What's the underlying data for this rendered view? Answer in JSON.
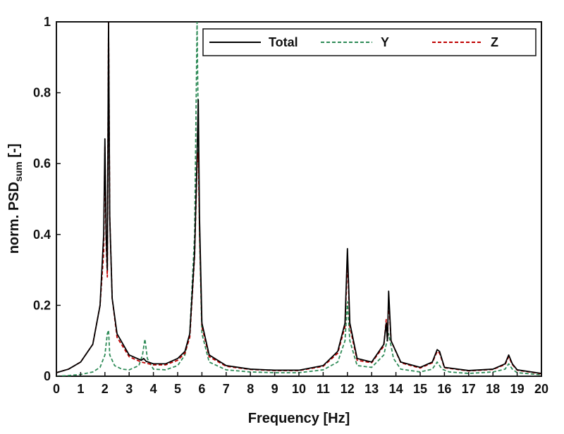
{
  "chart_data": {
    "type": "line",
    "xlabel": "Frequency [Hz]",
    "ylabel_main": "norm. PSD",
    "ylabel_sub": "sum",
    "ylabel_suffix": " [-]",
    "xlim": [
      0,
      20
    ],
    "ylim": [
      0,
      1
    ],
    "xticks": [
      "0",
      "1",
      "2",
      "3",
      "4",
      "5",
      "6",
      "7",
      "8",
      "9",
      "10",
      "11",
      "12",
      "13",
      "14",
      "15",
      "16",
      "17",
      "18",
      "19",
      "20"
    ],
    "yticks": [
      "0",
      "0.2",
      "0.4",
      "0.6",
      "0.8",
      "1"
    ],
    "grid": false,
    "legend_position": "top-right",
    "series": [
      {
        "name": "Total",
        "color": "#000000",
        "dash": "solid",
        "points": [
          [
            0,
            0.01
          ],
          [
            0.5,
            0.02
          ],
          [
            1.0,
            0.04
          ],
          [
            1.5,
            0.09
          ],
          [
            1.8,
            0.2
          ],
          [
            1.95,
            0.4
          ],
          [
            2.0,
            0.67
          ],
          [
            2.05,
            0.4
          ],
          [
            2.1,
            0.3
          ],
          [
            2.15,
            1.0
          ],
          [
            2.2,
            0.45
          ],
          [
            2.3,
            0.22
          ],
          [
            2.5,
            0.12
          ],
          [
            3.0,
            0.06
          ],
          [
            3.5,
            0.045
          ],
          [
            3.6,
            0.05
          ],
          [
            3.7,
            0.042
          ],
          [
            4.0,
            0.035
          ],
          [
            4.5,
            0.035
          ],
          [
            5.0,
            0.05
          ],
          [
            5.3,
            0.07
          ],
          [
            5.5,
            0.12
          ],
          [
            5.7,
            0.35
          ],
          [
            5.8,
            0.62
          ],
          [
            5.85,
            0.78
          ],
          [
            5.9,
            0.45
          ],
          [
            6.0,
            0.15
          ],
          [
            6.3,
            0.06
          ],
          [
            7.0,
            0.03
          ],
          [
            8.0,
            0.02
          ],
          [
            9.0,
            0.017
          ],
          [
            10.0,
            0.017
          ],
          [
            11.0,
            0.03
          ],
          [
            11.6,
            0.07
          ],
          [
            11.9,
            0.15
          ],
          [
            12.0,
            0.36
          ],
          [
            12.1,
            0.15
          ],
          [
            12.4,
            0.05
          ],
          [
            13.0,
            0.04
          ],
          [
            13.5,
            0.09
          ],
          [
            13.6,
            0.15
          ],
          [
            13.65,
            0.1
          ],
          [
            13.7,
            0.24
          ],
          [
            13.8,
            0.1
          ],
          [
            14.2,
            0.04
          ],
          [
            15.0,
            0.025
          ],
          [
            15.5,
            0.04
          ],
          [
            15.7,
            0.075
          ],
          [
            15.8,
            0.07
          ],
          [
            16.0,
            0.025
          ],
          [
            17.0,
            0.016
          ],
          [
            18.0,
            0.02
          ],
          [
            18.5,
            0.035
          ],
          [
            18.65,
            0.06
          ],
          [
            18.8,
            0.035
          ],
          [
            19.0,
            0.018
          ],
          [
            20.0,
            0.008
          ]
        ]
      },
      {
        "name": "Y",
        "color": "#2e8b57",
        "dash": "dashed",
        "points": [
          [
            0,
            0.0
          ],
          [
            0.5,
            0.002
          ],
          [
            1.0,
            0.005
          ],
          [
            1.5,
            0.012
          ],
          [
            1.8,
            0.025
          ],
          [
            2.0,
            0.06
          ],
          [
            2.1,
            0.12
          ],
          [
            2.15,
            0.13
          ],
          [
            2.2,
            0.06
          ],
          [
            2.4,
            0.03
          ],
          [
            2.7,
            0.02
          ],
          [
            3.0,
            0.018
          ],
          [
            3.4,
            0.03
          ],
          [
            3.55,
            0.06
          ],
          [
            3.65,
            0.105
          ],
          [
            3.75,
            0.05
          ],
          [
            4.0,
            0.02
          ],
          [
            4.5,
            0.018
          ],
          [
            5.0,
            0.03
          ],
          [
            5.3,
            0.06
          ],
          [
            5.5,
            0.12
          ],
          [
            5.7,
            0.4
          ],
          [
            5.8,
            1.0
          ],
          [
            5.9,
            0.4
          ],
          [
            6.0,
            0.12
          ],
          [
            6.3,
            0.04
          ],
          [
            7.0,
            0.018
          ],
          [
            8.0,
            0.012
          ],
          [
            9.0,
            0.01
          ],
          [
            10.0,
            0.01
          ],
          [
            11.0,
            0.018
          ],
          [
            11.6,
            0.04
          ],
          [
            11.9,
            0.1
          ],
          [
            12.0,
            0.21
          ],
          [
            12.1,
            0.1
          ],
          [
            12.4,
            0.03
          ],
          [
            13.0,
            0.025
          ],
          [
            13.5,
            0.06
          ],
          [
            13.7,
            0.12
          ],
          [
            13.9,
            0.05
          ],
          [
            14.2,
            0.02
          ],
          [
            15.0,
            0.012
          ],
          [
            15.5,
            0.02
          ],
          [
            15.7,
            0.04
          ],
          [
            15.9,
            0.02
          ],
          [
            16.2,
            0.012
          ],
          [
            17.0,
            0.008
          ],
          [
            18.0,
            0.012
          ],
          [
            18.5,
            0.02
          ],
          [
            18.65,
            0.035
          ],
          [
            18.8,
            0.02
          ],
          [
            19.0,
            0.01
          ],
          [
            20.0,
            0.004
          ]
        ]
      },
      {
        "name": "Z",
        "color": "#c00000",
        "dash": "dashed",
        "points": [
          [
            0,
            0.01
          ],
          [
            0.5,
            0.02
          ],
          [
            1.0,
            0.04
          ],
          [
            1.5,
            0.09
          ],
          [
            1.8,
            0.2
          ],
          [
            1.95,
            0.35
          ],
          [
            2.0,
            0.65
          ],
          [
            2.05,
            0.38
          ],
          [
            2.1,
            0.28
          ],
          [
            2.15,
            1.0
          ],
          [
            2.2,
            0.45
          ],
          [
            2.3,
            0.22
          ],
          [
            2.5,
            0.11
          ],
          [
            3.0,
            0.055
          ],
          [
            3.5,
            0.04
          ],
          [
            4.0,
            0.032
          ],
          [
            4.5,
            0.032
          ],
          [
            5.0,
            0.045
          ],
          [
            5.3,
            0.065
          ],
          [
            5.5,
            0.11
          ],
          [
            5.7,
            0.34
          ],
          [
            5.8,
            0.6
          ],
          [
            5.85,
            0.63
          ],
          [
            5.9,
            0.42
          ],
          [
            6.0,
            0.14
          ],
          [
            6.3,
            0.055
          ],
          [
            7.0,
            0.028
          ],
          [
            8.0,
            0.019
          ],
          [
            9.0,
            0.016
          ],
          [
            10.0,
            0.016
          ],
          [
            11.0,
            0.028
          ],
          [
            11.6,
            0.065
          ],
          [
            11.9,
            0.14
          ],
          [
            12.0,
            0.33
          ],
          [
            12.1,
            0.14
          ],
          [
            12.4,
            0.045
          ],
          [
            13.0,
            0.038
          ],
          [
            13.5,
            0.085
          ],
          [
            13.6,
            0.16
          ],
          [
            13.65,
            0.1
          ],
          [
            13.7,
            0.22
          ],
          [
            13.8,
            0.1
          ],
          [
            14.2,
            0.038
          ],
          [
            15.0,
            0.023
          ],
          [
            15.5,
            0.038
          ],
          [
            15.7,
            0.07
          ],
          [
            15.8,
            0.065
          ],
          [
            16.0,
            0.024
          ],
          [
            17.0,
            0.015
          ],
          [
            18.0,
            0.019
          ],
          [
            18.5,
            0.033
          ],
          [
            18.65,
            0.055
          ],
          [
            18.8,
            0.033
          ],
          [
            19.0,
            0.017
          ],
          [
            20.0,
            0.007
          ]
        ]
      }
    ]
  }
}
